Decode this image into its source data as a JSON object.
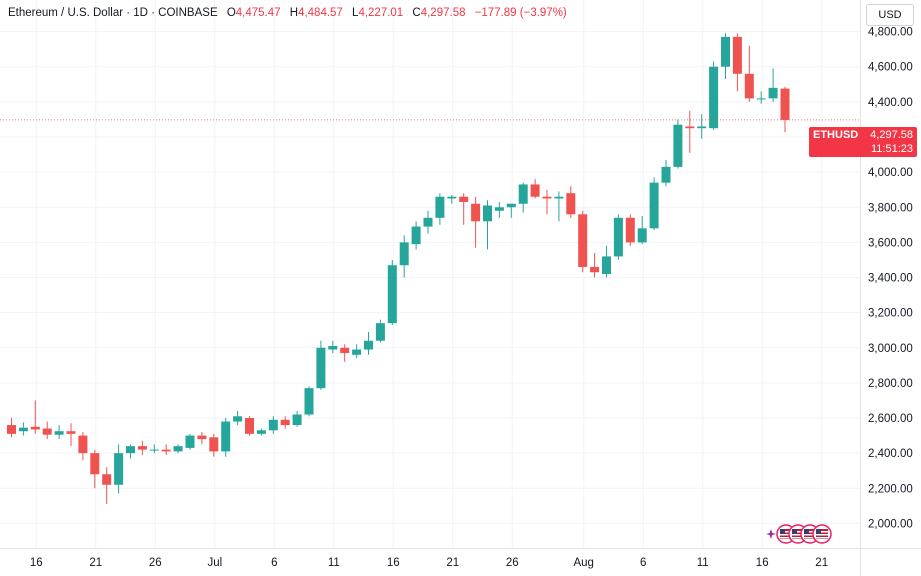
{
  "header": {
    "symbol": "Ethereum / U.S. Dollar · 1D · COINBASE",
    "o_label": "O",
    "o_value": "4,475.47",
    "h_label": "H",
    "h_value": "4,484.57",
    "l_label": "L",
    "l_value": "4,227.01",
    "c_label": "C",
    "c_value": "4,297.58",
    "change": "−177.89 (−3.97%)"
  },
  "currency_button": "USD",
  "price_tag": {
    "ticker": "ETHUSD",
    "price": "4,297.58",
    "countdown": "11:51:23"
  },
  "colors": {
    "up": "#26a69a",
    "down": "#ef5350",
    "grid": "#f0f3fa",
    "text": "#131722",
    "price_line": "#f23645"
  },
  "icons": [
    "sparkle-icon",
    "us-flag-icon",
    "us-flag-icon",
    "us-flag-icon",
    "us-flag-icon"
  ],
  "chart_data": {
    "type": "candlestick",
    "title": "Ethereum / U.S. Dollar · 1D · COINBASE",
    "ylabel": "USD",
    "ylim": [
      1860,
      4980
    ],
    "grid": true,
    "y_ticks": [
      2000,
      2200,
      2400,
      2600,
      2800,
      3000,
      3200,
      3400,
      3600,
      3800,
      4000,
      4200,
      4400,
      4600,
      4800
    ],
    "y_tick_labels": [
      "2,000.00",
      "2,200.00",
      "2,400.00",
      "2,600.00",
      "2,800.00",
      "3,000.00",
      "3,200.00",
      "3,400.00",
      "3,600.00",
      "3,800.00",
      "4,000.00",
      "4,200.00",
      "4,400.00",
      "4,600.00",
      "4,800.00"
    ],
    "x_tick_labels": [
      {
        "label": "16",
        "index": 2
      },
      {
        "label": "21",
        "index": 7
      },
      {
        "label": "26",
        "index": 12
      },
      {
        "label": "Jul",
        "index": 17
      },
      {
        "label": "6",
        "index": 22
      },
      {
        "label": "11",
        "index": 27
      },
      {
        "label": "16",
        "index": 32
      },
      {
        "label": "21",
        "index": 37
      },
      {
        "label": "26",
        "index": 42
      },
      {
        "label": "Aug",
        "index": 48
      },
      {
        "label": "6",
        "index": 53
      },
      {
        "label": "11",
        "index": 58
      },
      {
        "label": "16",
        "index": 63
      },
      {
        "label": "21",
        "index": 68
      }
    ],
    "last_price": 4297.58,
    "candles": [
      {
        "o": 2560,
        "h": 2600,
        "l": 2490,
        "c": 2510
      },
      {
        "o": 2525,
        "h": 2575,
        "l": 2500,
        "c": 2545
      },
      {
        "o": 2550,
        "h": 2700,
        "l": 2510,
        "c": 2535
      },
      {
        "o": 2540,
        "h": 2580,
        "l": 2480,
        "c": 2505
      },
      {
        "o": 2505,
        "h": 2560,
        "l": 2480,
        "c": 2525
      },
      {
        "o": 2525,
        "h": 2570,
        "l": 2440,
        "c": 2510
      },
      {
        "o": 2500,
        "h": 2520,
        "l": 2360,
        "c": 2400
      },
      {
        "o": 2400,
        "h": 2420,
        "l": 2200,
        "c": 2280
      },
      {
        "o": 2280,
        "h": 2320,
        "l": 2110,
        "c": 2220
      },
      {
        "o": 2220,
        "h": 2450,
        "l": 2170,
        "c": 2400
      },
      {
        "o": 2400,
        "h": 2450,
        "l": 2370,
        "c": 2440
      },
      {
        "o": 2440,
        "h": 2470,
        "l": 2390,
        "c": 2420
      },
      {
        "o": 2420,
        "h": 2450,
        "l": 2400,
        "c": 2420
      },
      {
        "o": 2420,
        "h": 2450,
        "l": 2390,
        "c": 2410
      },
      {
        "o": 2410,
        "h": 2450,
        "l": 2400,
        "c": 2440
      },
      {
        "o": 2430,
        "h": 2510,
        "l": 2420,
        "c": 2500
      },
      {
        "o": 2500,
        "h": 2520,
        "l": 2450,
        "c": 2480
      },
      {
        "o": 2490,
        "h": 2510,
        "l": 2380,
        "c": 2410
      },
      {
        "o": 2410,
        "h": 2600,
        "l": 2380,
        "c": 2580
      },
      {
        "o": 2580,
        "h": 2640,
        "l": 2560,
        "c": 2610
      },
      {
        "o": 2600,
        "h": 2610,
        "l": 2500,
        "c": 2510
      },
      {
        "o": 2510,
        "h": 2540,
        "l": 2500,
        "c": 2530
      },
      {
        "o": 2530,
        "h": 2610,
        "l": 2510,
        "c": 2590
      },
      {
        "o": 2590,
        "h": 2610,
        "l": 2540,
        "c": 2560
      },
      {
        "o": 2560,
        "h": 2640,
        "l": 2550,
        "c": 2620
      },
      {
        "o": 2620,
        "h": 2780,
        "l": 2610,
        "c": 2770
      },
      {
        "o": 2770,
        "h": 3040,
        "l": 2760,
        "c": 3000
      },
      {
        "o": 2990,
        "h": 3040,
        "l": 2970,
        "c": 3010
      },
      {
        "o": 3000,
        "h": 3020,
        "l": 2920,
        "c": 2970
      },
      {
        "o": 2960,
        "h": 3020,
        "l": 2940,
        "c": 2990
      },
      {
        "o": 2990,
        "h": 3090,
        "l": 2960,
        "c": 3040
      },
      {
        "o": 3040,
        "h": 3160,
        "l": 3030,
        "c": 3140
      },
      {
        "o": 3140,
        "h": 3500,
        "l": 3130,
        "c": 3470
      },
      {
        "o": 3470,
        "h": 3640,
        "l": 3400,
        "c": 3600
      },
      {
        "o": 3590,
        "h": 3720,
        "l": 3560,
        "c": 3690
      },
      {
        "o": 3690,
        "h": 3780,
        "l": 3650,
        "c": 3740
      },
      {
        "o": 3740,
        "h": 3880,
        "l": 3700,
        "c": 3860
      },
      {
        "o": 3850,
        "h": 3870,
        "l": 3820,
        "c": 3860
      },
      {
        "o": 3860,
        "h": 3880,
        "l": 3700,
        "c": 3830
      },
      {
        "o": 3820,
        "h": 3860,
        "l": 3570,
        "c": 3720
      },
      {
        "o": 3720,
        "h": 3840,
        "l": 3560,
        "c": 3810
      },
      {
        "o": 3780,
        "h": 3830,
        "l": 3740,
        "c": 3800
      },
      {
        "o": 3800,
        "h": 3820,
        "l": 3740,
        "c": 3820
      },
      {
        "o": 3820,
        "h": 3940,
        "l": 3770,
        "c": 3930
      },
      {
        "o": 3930,
        "h": 3960,
        "l": 3850,
        "c": 3860
      },
      {
        "o": 3860,
        "h": 3900,
        "l": 3760,
        "c": 3850
      },
      {
        "o": 3850,
        "h": 3890,
        "l": 3720,
        "c": 3860
      },
      {
        "o": 3880,
        "h": 3920,
        "l": 3740,
        "c": 3760
      },
      {
        "o": 3760,
        "h": 3780,
        "l": 3430,
        "c": 3460
      },
      {
        "o": 3460,
        "h": 3540,
        "l": 3400,
        "c": 3430
      },
      {
        "o": 3420,
        "h": 3580,
        "l": 3400,
        "c": 3520
      },
      {
        "o": 3520,
        "h": 3760,
        "l": 3500,
        "c": 3740
      },
      {
        "o": 3740,
        "h": 3760,
        "l": 3580,
        "c": 3600
      },
      {
        "o": 3600,
        "h": 3750,
        "l": 3590,
        "c": 3680
      },
      {
        "o": 3680,
        "h": 3970,
        "l": 3670,
        "c": 3940
      },
      {
        "o": 3940,
        "h": 4070,
        "l": 3920,
        "c": 4030
      },
      {
        "o": 4030,
        "h": 4300,
        "l": 4020,
        "c": 4270
      },
      {
        "o": 4260,
        "h": 4350,
        "l": 4110,
        "c": 4250
      },
      {
        "o": 4250,
        "h": 4330,
        "l": 4190,
        "c": 4260
      },
      {
        "o": 4250,
        "h": 4630,
        "l": 4240,
        "c": 4600
      },
      {
        "o": 4600,
        "h": 4790,
        "l": 4530,
        "c": 4770
      },
      {
        "o": 4770,
        "h": 4790,
        "l": 4460,
        "c": 4560
      },
      {
        "o": 4560,
        "h": 4720,
        "l": 4400,
        "c": 4420
      },
      {
        "o": 4420,
        "h": 4460,
        "l": 4390,
        "c": 4420
      },
      {
        "o": 4420,
        "h": 4590,
        "l": 4400,
        "c": 4480
      },
      {
        "o": 4475.47,
        "h": 4484.57,
        "l": 4227.01,
        "c": 4297.58
      }
    ]
  }
}
